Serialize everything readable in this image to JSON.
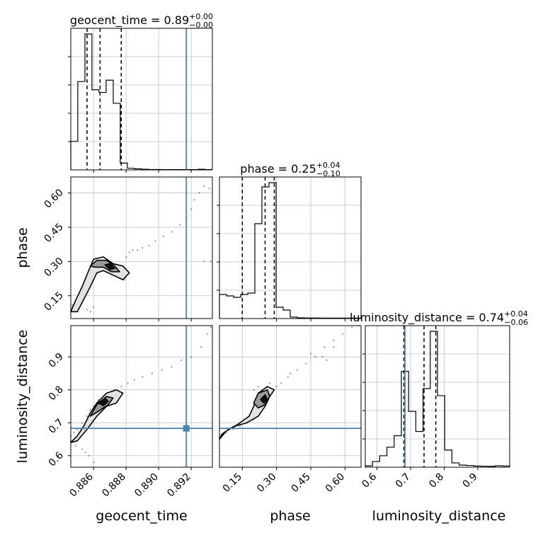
{
  "chart_data": {
    "type": "corner",
    "grid": true,
    "colors": {
      "truth": "#4682b4",
      "hist": "#000000",
      "quantile": "#000000",
      "grid": "#c0c0c0",
      "fill": "#9a9a9a"
    },
    "parameters": [
      "geocent_time",
      "phase",
      "luminosity_distance"
    ],
    "truth": {
      "geocent_time": 0.8917,
      "phase": null,
      "luminosity_distance": 0.683
    },
    "titles": [
      {
        "param": "geocent_time",
        "label": "geocent_time = 0.89",
        "sup": "+0.00",
        "sub": "−0.00"
      },
      {
        "param": "phase",
        "label": "phase = 0.25",
        "sup": "+0.04",
        "sub": "−0.10"
      },
      {
        "param": "luminosity_distance",
        "label": "luminosity_distance = 0.74",
        "sup": "+0.04",
        "sub": "−0.06"
      }
    ],
    "axis_labels": {
      "geocent_time": "geocent_time",
      "phase": "phase",
      "luminosity_distance": "luminosity_distance"
    },
    "ranges": {
      "geocent_time": [
        0.8846,
        0.8933
      ],
      "phase": [
        0.05,
        0.67
      ],
      "luminosity_distance": [
        0.565,
        0.995
      ]
    },
    "ticks": {
      "geocent_time": [
        "0.886",
        "0.888",
        "0.890",
        "0.892"
      ],
      "phase": [
        "0.15",
        "0.30",
        "0.45",
        "0.60"
      ],
      "luminosity_distance": [
        "0.6",
        "0.7",
        "0.8",
        "0.9"
      ]
    },
    "hist_geocent_time": {
      "edges": [
        0.8846,
        0.88503,
        0.88547,
        0.8859,
        0.88634,
        0.88677,
        0.88721,
        0.88764,
        0.88808,
        0.88851,
        0.88895,
        0.88938,
        0.88982,
        0.89025,
        0.89069,
        0.89112,
        0.89156,
        0.89199,
        0.89243,
        0.89286,
        0.8933
      ],
      "counts": [
        0.21,
        0.65,
        1.0,
        0.59,
        0.57,
        0.66,
        0.49,
        0.05,
        0.012,
        0.008,
        0.005,
        0.003,
        0.003,
        0.002,
        0.002,
        0.002,
        0.002,
        0.002,
        0.005,
        0.002
      ],
      "quantiles": [
        0.8856,
        0.8864,
        0.8877
      ]
    },
    "hist_phase": {
      "edges": [
        0.05,
        0.081,
        0.112,
        0.143,
        0.174,
        0.205,
        0.236,
        0.267,
        0.298,
        0.329,
        0.36,
        0.391,
        0.422,
        0.453,
        0.484,
        0.515,
        0.546,
        0.577,
        0.608,
        0.639,
        0.67
      ],
      "counts": [
        0.17,
        0.16,
        0.15,
        0.17,
        0.18,
        0.67,
        0.93,
        0.96,
        0.08,
        0.06,
        0.01,
        0.005,
        0.004,
        0.004,
        0.003,
        0.003,
        0.003,
        0.003,
        0.003,
        0.003
      ],
      "quantiles": [
        0.15,
        0.25,
        0.29
      ]
    },
    "hist_luminosity_distance": {
      "edges": [
        0.565,
        0.5865,
        0.608,
        0.6295,
        0.651,
        0.6725,
        0.694,
        0.7155,
        0.737,
        0.7585,
        0.78,
        0.8015,
        0.823,
        0.8445,
        0.866,
        0.8875,
        0.909,
        0.9305,
        0.952,
        0.9735,
        0.995
      ],
      "counts": [
        0.01,
        0.04,
        0.08,
        0.14,
        0.22,
        0.67,
        0.39,
        0.25,
        0.55,
        0.95,
        0.5,
        0.12,
        0.03,
        0.015,
        0.012,
        0.008,
        0.007,
        0.006,
        0.01,
        0.008
      ],
      "quantiles": [
        0.68,
        0.74,
        0.775
      ]
    },
    "scatter_phase_vs_geocent_time": [
      [
        0.8847,
        0.1
      ],
      [
        0.8849,
        0.12
      ],
      [
        0.8851,
        0.14
      ],
      [
        0.8853,
        0.17
      ],
      [
        0.8855,
        0.2
      ],
      [
        0.8857,
        0.24
      ],
      [
        0.8859,
        0.28
      ],
      [
        0.8861,
        0.3
      ],
      [
        0.8864,
        0.3
      ],
      [
        0.8867,
        0.28
      ],
      [
        0.887,
        0.26
      ],
      [
        0.8874,
        0.25
      ],
      [
        0.8877,
        0.24
      ],
      [
        0.8879,
        0.22
      ],
      [
        0.8879,
        0.27
      ],
      [
        0.888,
        0.32
      ],
      [
        0.8882,
        0.34
      ],
      [
        0.8884,
        0.35
      ],
      [
        0.8887,
        0.35
      ],
      [
        0.889,
        0.36
      ],
      [
        0.8894,
        0.37
      ],
      [
        0.8898,
        0.39
      ],
      [
        0.8903,
        0.41
      ],
      [
        0.8908,
        0.43
      ],
      [
        0.8913,
        0.46
      ],
      [
        0.8917,
        0.49
      ],
      [
        0.892,
        0.53
      ],
      [
        0.8922,
        0.57
      ],
      [
        0.8925,
        0.6
      ],
      [
        0.8928,
        0.63
      ],
      [
        0.8931,
        0.62
      ],
      [
        0.8928,
        0.3
      ],
      [
        0.8932,
        0.3
      ],
      [
        0.8851,
        0.1
      ],
      [
        0.8856,
        0.09
      ],
      [
        0.886,
        0.1
      ],
      [
        0.8858,
        0.08
      ],
      [
        0.8847,
        0.11
      ],
      [
        0.8863,
        0.27
      ],
      [
        0.8866,
        0.29
      ]
    ],
    "scatter_luminosity_distance_vs_geocent_time": [
      [
        0.8846,
        0.66
      ],
      [
        0.8848,
        0.67
      ],
      [
        0.885,
        0.68
      ],
      [
        0.8853,
        0.7
      ],
      [
        0.8856,
        0.72
      ],
      [
        0.8858,
        0.74
      ],
      [
        0.886,
        0.75
      ],
      [
        0.8863,
        0.77
      ],
      [
        0.8866,
        0.78
      ],
      [
        0.8869,
        0.79
      ],
      [
        0.8873,
        0.8
      ],
      [
        0.8877,
        0.81
      ],
      [
        0.8881,
        0.82
      ],
      [
        0.8885,
        0.83
      ],
      [
        0.889,
        0.84
      ],
      [
        0.8896,
        0.85
      ],
      [
        0.8902,
        0.86
      ],
      [
        0.8908,
        0.87
      ],
      [
        0.8914,
        0.89
      ],
      [
        0.892,
        0.9
      ],
      [
        0.8926,
        0.93
      ],
      [
        0.893,
        0.97
      ],
      [
        0.8932,
        0.99
      ],
      [
        0.8849,
        0.63
      ],
      [
        0.8853,
        0.62
      ],
      [
        0.8857,
        0.6
      ],
      [
        0.886,
        0.58
      ],
      [
        0.8846,
        0.645
      ],
      [
        0.8855,
        0.61
      ],
      [
        0.8862,
        0.76
      ]
    ],
    "scatter_luminosity_distance_vs_phase": [
      [
        0.06,
        0.66
      ],
      [
        0.08,
        0.67
      ],
      [
        0.11,
        0.68
      ],
      [
        0.14,
        0.69
      ],
      [
        0.17,
        0.7
      ],
      [
        0.2,
        0.71
      ],
      [
        0.22,
        0.73
      ],
      [
        0.24,
        0.75
      ],
      [
        0.26,
        0.77
      ],
      [
        0.28,
        0.79
      ],
      [
        0.3,
        0.81
      ],
      [
        0.32,
        0.82
      ],
      [
        0.35,
        0.84
      ],
      [
        0.39,
        0.86
      ],
      [
        0.43,
        0.88
      ],
      [
        0.47,
        0.9
      ],
      [
        0.51,
        0.93
      ],
      [
        0.55,
        0.95
      ],
      [
        0.59,
        0.97
      ],
      [
        0.63,
        0.99
      ],
      [
        0.66,
        0.995
      ],
      [
        0.2,
        0.8
      ],
      [
        0.22,
        0.81
      ],
      [
        0.24,
        0.79
      ],
      [
        0.27,
        0.82
      ],
      [
        0.45,
        0.91
      ],
      [
        0.5,
        0.9
      ],
      [
        0.52,
        0.89
      ],
      [
        0.36,
        0.85
      ],
      [
        0.55,
        0.93
      ]
    ],
    "contours_phase_vs_geocent_time": [
      [
        [
          0.8846,
          0.08
        ],
        [
          0.8849,
          0.13
        ],
        [
          0.8853,
          0.19
        ],
        [
          0.8857,
          0.26
        ],
        [
          0.886,
          0.31
        ],
        [
          0.8866,
          0.32
        ],
        [
          0.8872,
          0.29
        ],
        [
          0.8878,
          0.28
        ],
        [
          0.8882,
          0.25
        ],
        [
          0.8878,
          0.22
        ],
        [
          0.8872,
          0.24
        ],
        [
          0.8866,
          0.26
        ],
        [
          0.8862,
          0.25
        ],
        [
          0.8858,
          0.19
        ],
        [
          0.8853,
          0.12
        ],
        [
          0.885,
          0.08
        ]
      ],
      [
        [
          0.8858,
          0.28
        ],
        [
          0.8862,
          0.305
        ],
        [
          0.8868,
          0.305
        ],
        [
          0.8873,
          0.28
        ],
        [
          0.8876,
          0.255
        ],
        [
          0.8871,
          0.255
        ],
        [
          0.8866,
          0.275
        ],
        [
          0.8861,
          0.275
        ]
      ],
      [
        [
          0.8867,
          0.285
        ],
        [
          0.887,
          0.29
        ],
        [
          0.8873,
          0.27
        ],
        [
          0.887,
          0.265
        ]
      ]
    ],
    "contours_luminosity_distance_vs_geocent_time": [
      [
        [
          0.8846,
          0.64
        ],
        [
          0.885,
          0.66
        ],
        [
          0.8854,
          0.69
        ],
        [
          0.8858,
          0.73
        ],
        [
          0.8862,
          0.76
        ],
        [
          0.8868,
          0.79
        ],
        [
          0.8874,
          0.8
        ],
        [
          0.8878,
          0.79
        ],
        [
          0.8874,
          0.76
        ],
        [
          0.8868,
          0.75
        ],
        [
          0.8862,
          0.72
        ],
        [
          0.8856,
          0.68
        ],
        [
          0.885,
          0.645
        ]
      ],
      [
        [
          0.8858,
          0.72
        ],
        [
          0.8862,
          0.755
        ],
        [
          0.8868,
          0.78
        ],
        [
          0.8872,
          0.775
        ],
        [
          0.8869,
          0.755
        ],
        [
          0.8863,
          0.735
        ]
      ],
      [
        [
          0.8863,
          0.76
        ],
        [
          0.8867,
          0.775
        ],
        [
          0.8869,
          0.765
        ],
        [
          0.8866,
          0.752
        ]
      ]
    ],
    "contours_luminosity_distance_vs_phase": [
      [
        [
          0.05,
          0.65
        ],
        [
          0.08,
          0.675
        ],
        [
          0.12,
          0.69
        ],
        [
          0.17,
          0.7
        ],
        [
          0.22,
          0.72
        ],
        [
          0.25,
          0.75
        ],
        [
          0.27,
          0.78
        ],
        [
          0.29,
          0.8
        ],
        [
          0.26,
          0.81
        ],
        [
          0.22,
          0.79
        ],
        [
          0.2,
          0.75
        ],
        [
          0.18,
          0.72
        ],
        [
          0.13,
          0.695
        ],
        [
          0.09,
          0.68
        ],
        [
          0.06,
          0.665
        ]
      ],
      [
        [
          0.2,
          0.76
        ],
        [
          0.22,
          0.79
        ],
        [
          0.26,
          0.8
        ],
        [
          0.27,
          0.78
        ],
        [
          0.25,
          0.755
        ],
        [
          0.22,
          0.745
        ]
      ],
      [
        [
          0.23,
          0.77
        ],
        [
          0.25,
          0.785
        ],
        [
          0.26,
          0.77
        ],
        [
          0.245,
          0.76
        ]
      ]
    ]
  }
}
